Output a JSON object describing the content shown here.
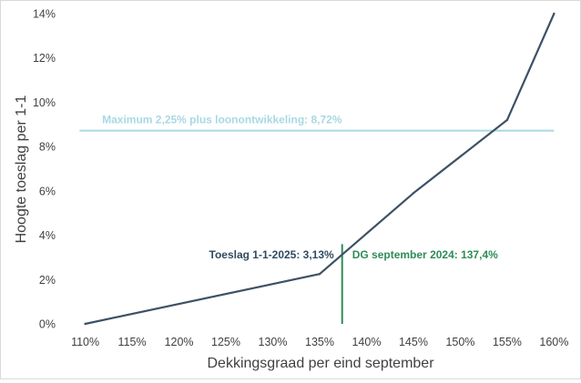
{
  "chart_data": {
    "type": "line",
    "xlabel": "Dekkingsgraad per eind september",
    "ylabel": "Hoogte toeslag per 1-1",
    "xlim": [
      108,
      162
    ],
    "ylim": [
      0,
      14
    ],
    "x_ticks": [
      {
        "value": 110,
        "label": "110%"
      },
      {
        "value": 115,
        "label": "115%"
      },
      {
        "value": 120,
        "label": "120%"
      },
      {
        "value": 125,
        "label": "125%"
      },
      {
        "value": 130,
        "label": "130%"
      },
      {
        "value": 135,
        "label": "135%"
      },
      {
        "value": 140,
        "label": "140%"
      },
      {
        "value": 145,
        "label": "145%"
      },
      {
        "value": 150,
        "label": "150%"
      },
      {
        "value": 155,
        "label": "155%"
      },
      {
        "value": 160,
        "label": "160%"
      }
    ],
    "y_ticks": [
      {
        "value": 0,
        "label": "0%"
      },
      {
        "value": 2,
        "label": "2%"
      },
      {
        "value": 4,
        "label": "4%"
      },
      {
        "value": 6,
        "label": "6%"
      },
      {
        "value": 8,
        "label": "8%"
      },
      {
        "value": 10,
        "label": "10%"
      },
      {
        "value": 12,
        "label": "12%"
      },
      {
        "value": 14,
        "label": "14%"
      }
    ],
    "grid": false,
    "legend": "none",
    "series": [
      {
        "color": "#3d5166",
        "points": [
          {
            "x": 110,
            "y": 0
          },
          {
            "x": 135,
            "y": 2.25
          },
          {
            "x": 145,
            "y": 5.9
          },
          {
            "x": 155,
            "y": 9.2
          },
          {
            "x": 160,
            "y": 14
          }
        ]
      }
    ],
    "reference_lines": [
      {
        "orientation": "horizontal",
        "value": 8.72,
        "color": "#a9d8e3",
        "label": "Maximum 2,25% plus loonontwikkeling: 8,72%",
        "label_color": "#a9d8e3"
      },
      {
        "orientation": "vertical",
        "value": 137.4,
        "y_extent": [
          0,
          3.6
        ],
        "color": "#2e8b57",
        "label": "DG september 2024: 137,4%",
        "label_color": "#2e8b57"
      }
    ],
    "annotations": [
      {
        "text": "Toeslag 1-1-2025: 3,13%",
        "x": 137.4,
        "y": 3.13,
        "color": "#2f4a60"
      }
    ]
  }
}
